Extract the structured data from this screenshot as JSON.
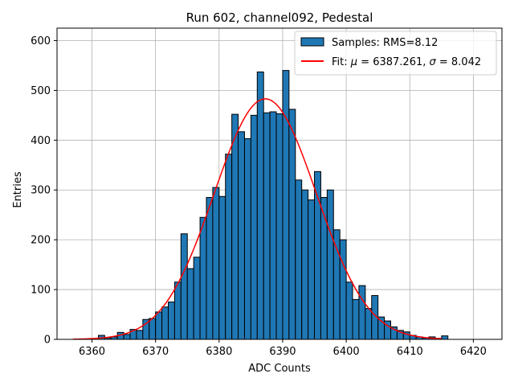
{
  "chart_data": {
    "type": "bar",
    "title": "Run 602, channel092, Pedestal",
    "xlabel": "ADC Counts",
    "ylabel": "Entries",
    "xlim": [
      6354.5,
      6424.5
    ],
    "ylim": [
      0,
      625
    ],
    "xticks": [
      6360,
      6370,
      6380,
      6390,
      6400,
      6410,
      6420
    ],
    "yticks": [
      0,
      100,
      200,
      300,
      400,
      500,
      600
    ],
    "grid": true,
    "legend_position": "top-right",
    "histogram": {
      "name": "Samples: RMS=8.12",
      "color": "#1f77b4",
      "edge_color": "#000000",
      "bin_start": 6357,
      "bin_width": 1,
      "counts": [
        0,
        0,
        0,
        0,
        8,
        3,
        5,
        14,
        10,
        20,
        18,
        40,
        42,
        55,
        65,
        75,
        115,
        212,
        142,
        165,
        245,
        285,
        305,
        287,
        372,
        452,
        417,
        403,
        450,
        537,
        455,
        457,
        453,
        540,
        462,
        320,
        300,
        280,
        337,
        285,
        300,
        220,
        200,
        115,
        80,
        108,
        62,
        88,
        45,
        37,
        25,
        18,
        15,
        8,
        5,
        3,
        5,
        2,
        7
      ]
    },
    "fit": {
      "name": "Fit: μ = 6387.261, σ = 8.042",
      "name_prefix": "Fit: ",
      "mu_symbol": "μ",
      "mu_text": " = 6387.261, ",
      "sigma_symbol": "σ",
      "sigma_text": " = 8.042",
      "color": "#ff0000",
      "mu": 6387.261,
      "sigma": 8.042,
      "amplitude": 483,
      "x_range": [
        6357,
        6415
      ]
    }
  }
}
